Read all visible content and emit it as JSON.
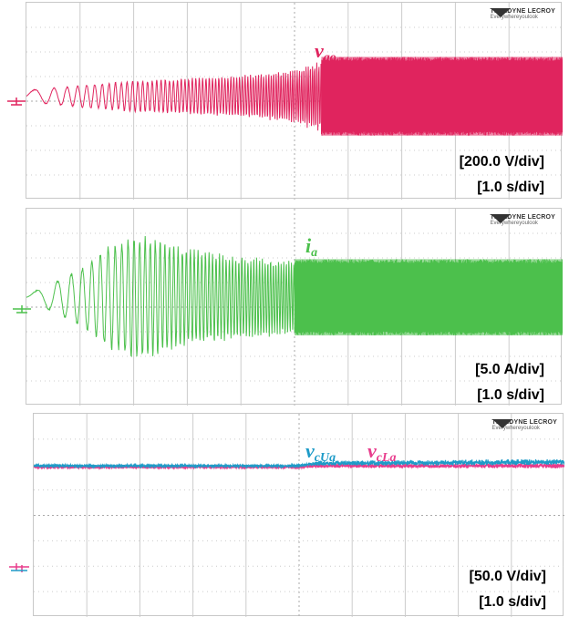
{
  "brand": {
    "name": "TELEDYNE LECROY",
    "tagline": "Everywhereyoulook"
  },
  "colors": {
    "vao": "#e0245e",
    "ia": "#4cc04c",
    "vcUa": "#1e9bc8",
    "vcLa": "#e83c8c",
    "grid": "#cccccc"
  },
  "panels": [
    {
      "signals": [
        {
          "main": "v",
          "sub": "ao",
          "color": "#e0245e"
        }
      ],
      "vscale": "[200.0 V/div]",
      "tscale": "[1.0 s/div]"
    },
    {
      "signals": [
        {
          "main": "i",
          "sub": "a",
          "color": "#4cc04c"
        }
      ],
      "vscale": "[5.0 A/div]",
      "tscale": "[1.0 s/div]"
    },
    {
      "signals": [
        {
          "main": "v",
          "sub": "cUa",
          "color": "#1e9bc8"
        },
        {
          "main": "v",
          "sub": "cLa",
          "color": "#e83c8c"
        }
      ],
      "vscale": "[50.0 V/div]",
      "tscale": "[1.0 s/div]"
    }
  ],
  "chart_data": [
    {
      "type": "line",
      "title": "",
      "xlabel": "",
      "ylabel": "",
      "x_scale": "1.0 s/div",
      "y_scale": "200.0 V/div",
      "x_divisions": 10,
      "y_divisions": 8,
      "series": [
        {
          "name": "vao",
          "envelope_x_div": [
            0,
            1,
            2,
            3,
            4,
            5,
            5.5,
            6,
            7,
            8,
            9,
            10
          ],
          "envelope_amplitude_div": [
            0.25,
            0.45,
            0.65,
            0.75,
            0.85,
            1.1,
            1.5,
            1.6,
            1.6,
            1.6,
            1.6,
            1.6
          ]
        }
      ]
    },
    {
      "type": "line",
      "title": "",
      "xlabel": "",
      "ylabel": "",
      "x_scale": "1.0 s/div",
      "y_scale": "5.0 A/div",
      "x_divisions": 10,
      "y_divisions": 8,
      "series": [
        {
          "name": "ia",
          "envelope_x_div": [
            0,
            0.5,
            1,
            1.5,
            2,
            2.5,
            3,
            4,
            5,
            6,
            7,
            8,
            9,
            10
          ],
          "envelope_amplitude_div": [
            0.1,
            0.6,
            1.2,
            2.1,
            2.6,
            2.4,
            2.0,
            1.7,
            1.55,
            1.55,
            1.55,
            1.55,
            1.55,
            1.55
          ]
        }
      ]
    },
    {
      "type": "line",
      "title": "",
      "xlabel": "",
      "ylabel": "",
      "x_scale": "1.0 s/div",
      "y_scale": "50.0 V/div",
      "x_divisions": 10,
      "y_divisions": 8,
      "series": [
        {
          "name": "vcUa",
          "x_div": [
            0,
            5,
            5.3,
            10
          ],
          "y_div": [
            2.05,
            2.05,
            1.95,
            1.9
          ],
          "ripple_div": [
            0.05,
            0.05,
            0.1,
            0.12
          ]
        },
        {
          "name": "vcLa",
          "x_div": [
            0,
            5,
            5.3,
            10
          ],
          "y_div": [
            2.1,
            2.1,
            2.05,
            2.05
          ],
          "ripple_div": [
            0.04,
            0.04,
            0.08,
            0.1
          ]
        }
      ]
    }
  ]
}
